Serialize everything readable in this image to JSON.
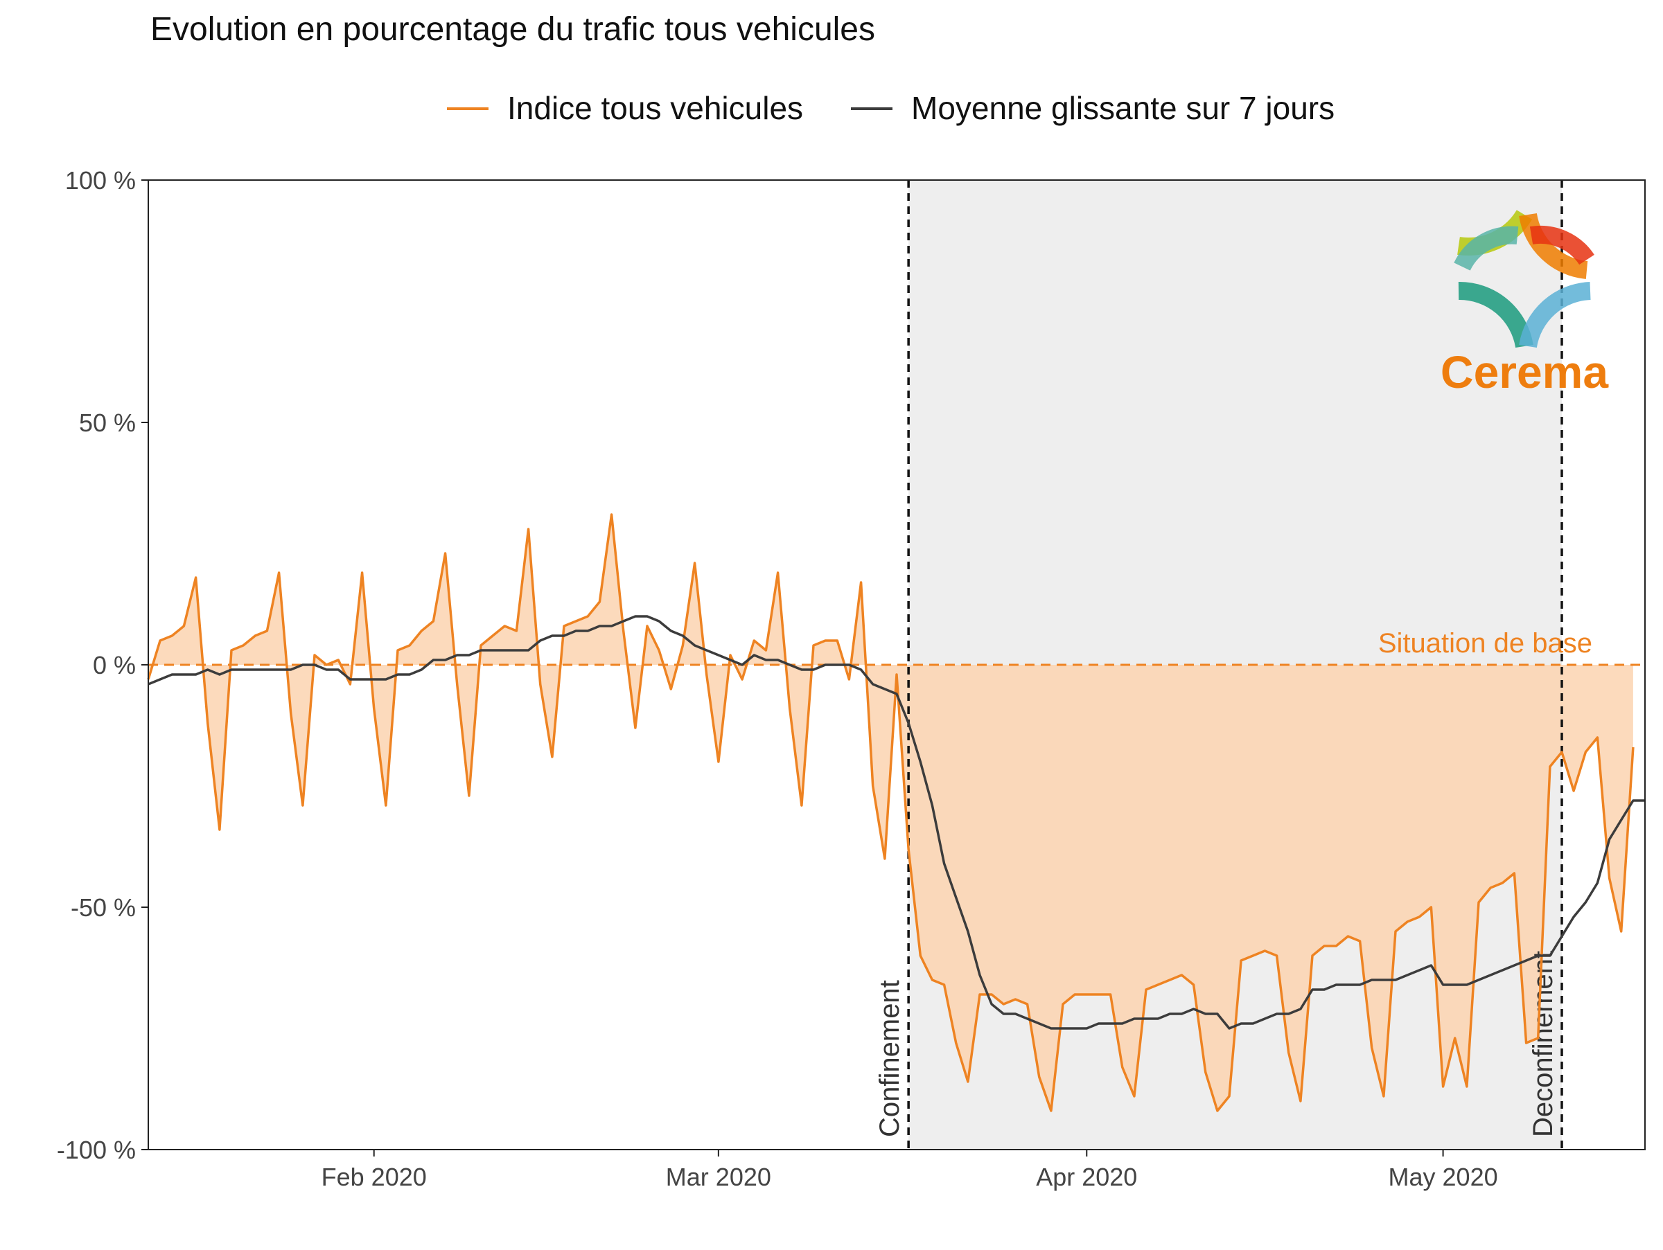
{
  "colors": {
    "orange": "#ee8322",
    "orange_fill": "#fbd3b0",
    "shade": "#eeeeee",
    "dark": "#3c3c3c",
    "axis": "#222222",
    "tick_text": "#444444",
    "logo_text": "#ee7d0e"
  },
  "chart_data": {
    "type": "line",
    "title": "Evolution en pourcentage du trafic tous vehicules",
    "xlabel": "",
    "ylabel": "",
    "ylim": [
      -100,
      100
    ],
    "xlim": [
      "2020-01-13",
      "2020-05-18"
    ],
    "y_ticks": [
      {
        "value": 100,
        "label": "100 %"
      },
      {
        "value": 50,
        "label": "50 %"
      },
      {
        "value": 0,
        "label": "0 %"
      },
      {
        "value": -50,
        "label": "-50 %"
      },
      {
        "value": -100,
        "label": "-100 %"
      }
    ],
    "x_ticks": [
      {
        "date": "2020-02-01",
        "label": "Feb 2020"
      },
      {
        "date": "2020-03-01",
        "label": "Mar 2020"
      },
      {
        "date": "2020-04-01",
        "label": "Apr 2020"
      },
      {
        "date": "2020-05-01",
        "label": "May 2020"
      }
    ],
    "grid": false,
    "legend_position": "top",
    "legend": [
      {
        "label": "Indice tous vehicules",
        "color": "#ee8322"
      },
      {
        "label": "Moyenne glissante sur 7 jours",
        "color": "#3c3c3c"
      }
    ],
    "start_date": "2020-01-13",
    "series": [
      {
        "name": "Indice tous vehicules",
        "values": [
          -3,
          5,
          6,
          8,
          18,
          -12,
          -34,
          3,
          4,
          6,
          7,
          19,
          -10,
          -29,
          2,
          0,
          1,
          -4,
          19,
          -9,
          -29,
          3,
          4,
          7,
          9,
          23,
          -4,
          -27,
          4,
          6,
          8,
          7,
          28,
          -4,
          -19,
          8,
          9,
          10,
          13,
          31,
          7,
          -13,
          8,
          3,
          -5,
          4,
          21,
          -2,
          -20,
          2,
          -3,
          5,
          3,
          19,
          -9,
          -29,
          4,
          5,
          5,
          -3,
          17,
          -25,
          -40,
          -2,
          -38,
          -60,
          -65,
          -66,
          -78,
          -86,
          -68,
          -68,
          -70,
          -69,
          -70,
          -85,
          -92,
          -70,
          -68,
          -68,
          -68,
          -68,
          -83,
          -89,
          -67,
          -66,
          -65,
          -64,
          -66,
          -84,
          -92,
          -89,
          -61,
          -60,
          -59,
          -60,
          -80,
          -90,
          -60,
          -58,
          -58,
          -56,
          -57,
          -79,
          -89,
          -55,
          -53,
          -52,
          -50,
          -87,
          -77,
          -87,
          -49,
          -46,
          -45,
          -43,
          -78,
          -77,
          -21,
          -18,
          -26,
          -18,
          -15,
          -44,
          -55,
          -17
        ],
        "color": "#ee8322"
      },
      {
        "name": "Moyenne glissante sur 7 jours",
        "values": [
          -4,
          -3,
          -2,
          -2,
          -2,
          -1,
          -2,
          -1,
          -1,
          -1,
          -1,
          -1,
          -1,
          0,
          0,
          -1,
          -1,
          -3,
          -3,
          -3,
          -3,
          -2,
          -2,
          -1,
          1,
          1,
          2,
          2,
          3,
          3,
          3,
          3,
          3,
          5,
          6,
          6,
          7,
          7,
          8,
          8,
          9,
          10,
          10,
          9,
          7,
          6,
          4,
          3,
          2,
          1,
          0,
          2,
          1,
          1,
          0,
          -1,
          -1,
          0,
          0,
          0,
          -1,
          -4,
          -5,
          -6,
          -12,
          -20,
          -29,
          -41,
          -48,
          -55,
          -64,
          -70,
          -72,
          -72,
          -73,
          -74,
          -75,
          -75,
          -75,
          -75,
          -74,
          -74,
          -74,
          -73,
          -73,
          -73,
          -72,
          -72,
          -71,
          -72,
          -72,
          -75,
          -74,
          -74,
          -73,
          -72,
          -72,
          -71,
          -67,
          -67,
          -66,
          -66,
          -66,
          -65,
          -65,
          -65,
          -64,
          -63,
          -62,
          -66,
          -66,
          -66,
          -65,
          -64,
          -63,
          -62,
          -61,
          -60,
          -60,
          -56,
          -52,
          -49,
          -45,
          -36,
          -32,
          -28,
          -28
        ]
      }
    ],
    "reference_line": {
      "value": 0,
      "label": "Situation de base"
    },
    "periods": [
      {
        "label": "Confinement",
        "date": "2020-03-17"
      },
      {
        "label": "Deconfinement",
        "date": "2020-05-11"
      }
    ]
  },
  "logo": {
    "text": "Cerema"
  }
}
